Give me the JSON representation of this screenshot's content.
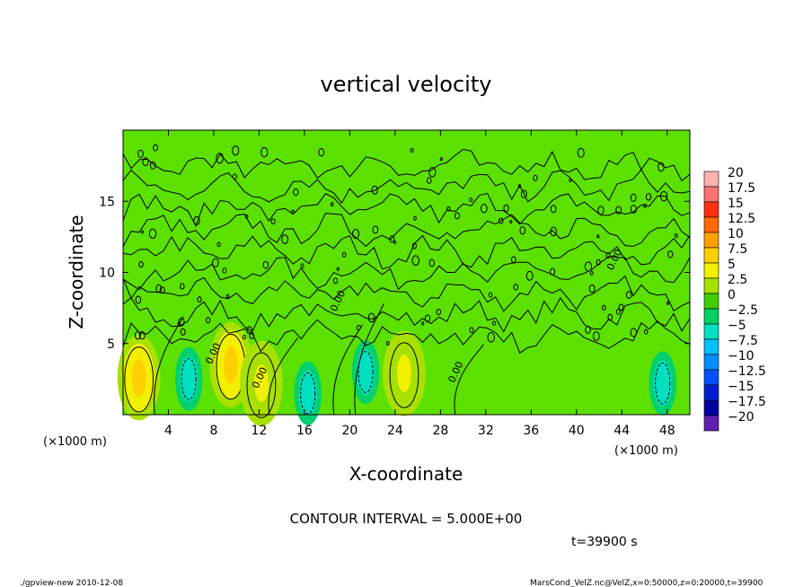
{
  "chart_data": {
    "type": "heatmap",
    "title": "vertical velocity",
    "xlabel": "X-coordinate",
    "ylabel": "Z-coordinate",
    "x_unit_label": "(×1000 m)",
    "x_unit_label_right": "(×1000 m)",
    "xlim": [
      0,
      50
    ],
    "ylim": [
      0,
      20
    ],
    "x_ticks": [
      4,
      8,
      12,
      16,
      20,
      24,
      28,
      32,
      36,
      40,
      44,
      48
    ],
    "y_ticks": [
      5,
      10,
      15
    ],
    "x_tick_labels": [
      "4",
      "8",
      "12",
      "16",
      "20",
      "24",
      "28",
      "32",
      "36",
      "40",
      "44",
      "48"
    ],
    "y_tick_labels": [
      "5",
      "10",
      "15"
    ],
    "colorbar": {
      "levels": [
        20,
        17.5,
        15,
        12.5,
        10,
        7.5,
        5,
        2.5,
        0,
        -2.5,
        -5,
        -7.5,
        -10,
        -12.5,
        -15,
        -17.5,
        -20
      ],
      "labels": [
        "20",
        "17.5",
        "15",
        "12.5",
        "10",
        "7.5",
        "5",
        "2.5",
        "0",
        "−2.5",
        "−5",
        "−7.5",
        "−10",
        "−12.5",
        "−15",
        "−17.5",
        "−20"
      ],
      "colors": [
        "#ffb0b0",
        "#ff7070",
        "#ff3010",
        "#ff6a00",
        "#ffa000",
        "#ffd000",
        "#f0f000",
        "#a8e000",
        "#40d000",
        "#00d060",
        "#00e0c0",
        "#00c0ff",
        "#0090ff",
        "#0050ff",
        "#0020d0",
        "#0000a0",
        "#6020b0"
      ]
    },
    "updraft_cells": [
      {
        "x": 1.4,
        "z": 2.6,
        "w": 8
      },
      {
        "x": 9.5,
        "z": 3.5,
        "w": 7.6
      },
      {
        "x": 12.2,
        "z": 2.2,
        "w": 6
      },
      {
        "x": 24.8,
        "z": 2.9,
        "w": 5.2
      }
    ],
    "downdraft_cells": [
      {
        "x": 5.8,
        "z": 2.5,
        "w": -4
      },
      {
        "x": 16.3,
        "z": 1.5,
        "w": -3.4
      },
      {
        "x": 21.4,
        "z": 3.0,
        "w": -3.6
      },
      {
        "x": 47.6,
        "z": 2.2,
        "w": -4
      }
    ],
    "contour_interval_text": "CONTOUR INTERVAL = 5.000E+00",
    "time_text": "t=39900 s",
    "contour_labels": [
      "0.00",
      "0.00",
      "0.00",
      "0.00",
      "0.00"
    ]
  },
  "footer": {
    "left": "./gpview-new   2010-12-08",
    "right": "MarsCond_VelZ.nc@VelZ,x=0:50000,z=0:20000,t=39900"
  },
  "colors": {
    "field_background": "#5ce000",
    "contour": "#000000"
  }
}
